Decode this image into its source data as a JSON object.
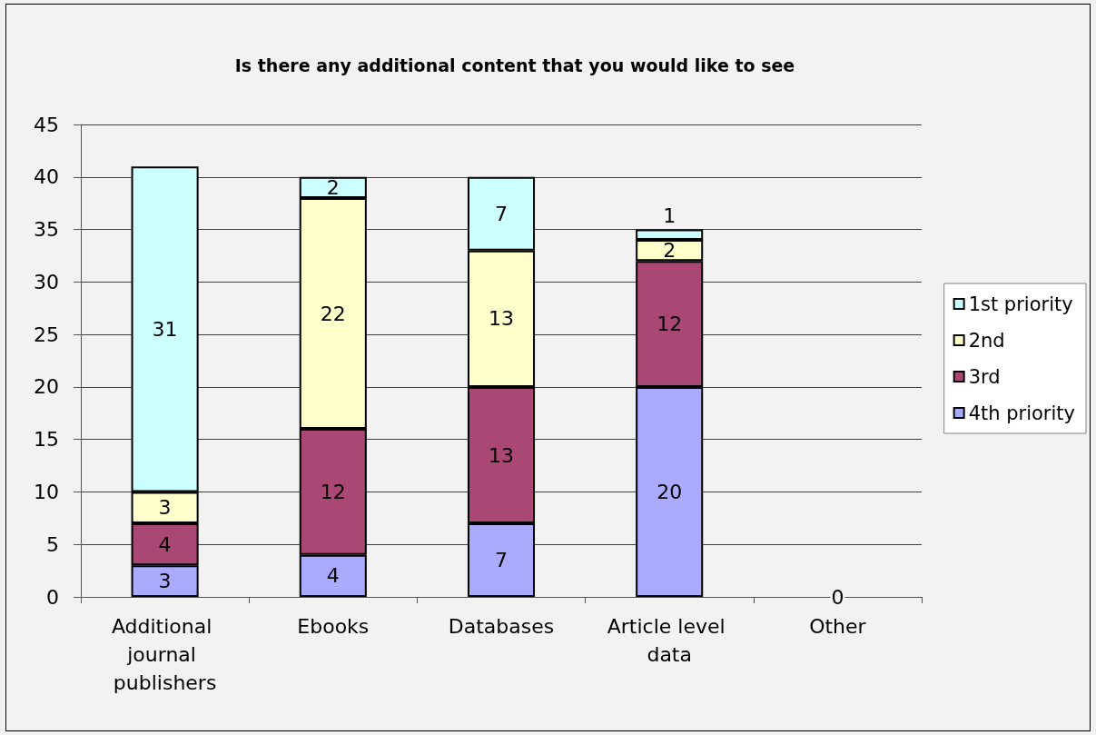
{
  "chart_data": {
    "type": "bar",
    "title": "Is there any additional content that you would like to see",
    "categories": [
      "Additional journal publishers",
      "Ebooks",
      "Databases",
      "Article level data",
      "Other"
    ],
    "stacked": true,
    "series": [
      {
        "name": "4th priority",
        "color": "#aaaaff",
        "values": [
          3,
          4,
          7,
          20,
          0
        ],
        "value_labels": [
          "3",
          "4",
          "7",
          "20",
          "0"
        ]
      },
      {
        "name": "3rd",
        "color": "#a94874",
        "values": [
          4,
          12,
          13,
          12,
          0
        ],
        "value_labels": [
          "4",
          "12",
          "13",
          "12",
          null
        ]
      },
      {
        "name": "2nd",
        "color": "#ffffcc",
        "values": [
          3,
          22,
          13,
          2,
          0
        ],
        "value_labels": [
          "3",
          "22",
          "13",
          "2",
          null
        ]
      },
      {
        "name": "1st priority",
        "color": "#ccffff",
        "values": [
          31,
          2,
          7,
          1,
          0
        ],
        "value_labels": [
          "31",
          "2",
          "7",
          "1",
          null
        ]
      }
    ],
    "ylim": [
      0,
      45
    ],
    "yticks": [
      0,
      5,
      10,
      15,
      20,
      25,
      30,
      35,
      40,
      45
    ],
    "grid": "y",
    "legend": "right"
  }
}
